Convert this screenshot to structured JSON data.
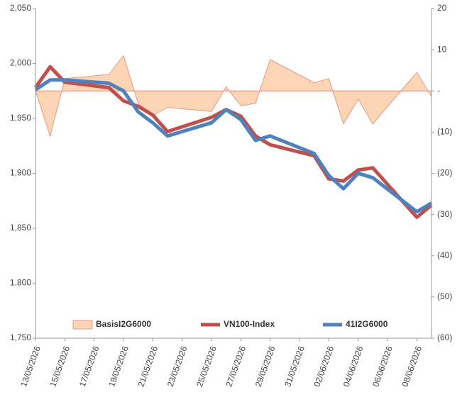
{
  "chart_data": {
    "type": "line",
    "x": [
      "2026-05-13",
      "2026-05-14",
      "2026-05-15",
      "2026-05-18",
      "2026-05-19",
      "2026-05-20",
      "2026-05-21",
      "2026-05-22",
      "2026-05-25",
      "2026-05-26",
      "2026-05-27",
      "2026-05-28",
      "2026-05-29",
      "2026-06-01",
      "2026-06-02",
      "2026-06-03",
      "2026-06-04",
      "2026-06-05",
      "2026-06-08",
      "2026-06-09"
    ],
    "xlim": [
      "2026-05-13",
      "2026-06-09"
    ],
    "xticks": [
      {
        "value": "2026-05-13",
        "label": "13/05/2026"
      },
      {
        "value": "2026-05-15",
        "label": "15/05/2026"
      },
      {
        "value": "2026-05-17",
        "label": "17/05/2026"
      },
      {
        "value": "2026-05-19",
        "label": "19/05/2026"
      },
      {
        "value": "2026-05-21",
        "label": "21/05/2026"
      },
      {
        "value": "2026-05-23",
        "label": "23/05/2026"
      },
      {
        "value": "2026-05-25",
        "label": "25/05/2026"
      },
      {
        "value": "2026-05-27",
        "label": "27/05/2026"
      },
      {
        "value": "2026-05-29",
        "label": "29/05/2026"
      },
      {
        "value": "2026-05-31",
        "label": "31/05/2026"
      },
      {
        "value": "2026-06-02",
        "label": "02/06/2026"
      },
      {
        "value": "2026-06-04",
        "label": "04/06/2026"
      },
      {
        "value": "2026-06-06",
        "label": "06/06/2026"
      },
      {
        "value": "2026-06-08",
        "label": "08/06/2026"
      }
    ],
    "ylim": [
      1750,
      2050
    ],
    "yticks": [
      {
        "value": 1750,
        "label": "1,750"
      },
      {
        "value": 1800,
        "label": "1,800"
      },
      {
        "value": 1850,
        "label": "1,850"
      },
      {
        "value": 1900,
        "label": "1,900"
      },
      {
        "value": 1950,
        "label": "1,950"
      },
      {
        "value": 2000,
        "label": "2,000"
      },
      {
        "value": 2050,
        "label": "2,050"
      }
    ],
    "y2lim": [
      -60,
      20
    ],
    "y2ticks": [
      {
        "value": -60,
        "label": "(60)"
      },
      {
        "value": -50,
        "label": "(50)"
      },
      {
        "value": -40,
        "label": "(40)"
      },
      {
        "value": -30,
        "label": "(30)"
      },
      {
        "value": -20,
        "label": "(20)"
      },
      {
        "value": -10,
        "label": "(10)"
      },
      {
        "value": 0,
        "label": "-"
      },
      10,
      20
    ],
    "grid": false,
    "legend": "bottom",
    "series": [
      {
        "name": "BasisI2G6000",
        "type": "area",
        "axis": "y2",
        "color": "#fcd5b5",
        "edge_color": "#e39a8a",
        "values": [
          0,
          -11,
          3,
          4,
          8.6,
          -3,
          -6,
          -4,
          -5,
          1,
          -3.6,
          -3,
          7.6,
          2,
          3,
          -8,
          -2,
          -8,
          4.5,
          -1.4
        ]
      },
      {
        "name": "VN100-Index",
        "type": "line",
        "color": "#c0504d",
        "values": [
          1978,
          1997,
          1983,
          1978,
          1966,
          1961,
          1953,
          1938,
          1951,
          1958,
          1952,
          1934,
          1926,
          1916,
          1895,
          1893,
          1903,
          1905,
          1860,
          1871
        ]
      },
      {
        "name": "41I2G6000",
        "type": "line",
        "color": "#4f81bd",
        "values": [
          1976,
          1985,
          1985,
          1982,
          1975,
          1956,
          1946,
          1934,
          1946,
          1958,
          1949,
          1930,
          1934,
          1918,
          1898,
          1886,
          1900,
          1896,
          1865,
          1873
        ]
      }
    ]
  }
}
